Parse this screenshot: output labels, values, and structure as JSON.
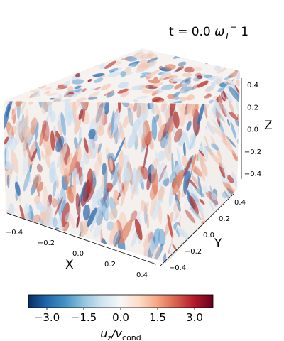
{
  "title": {
    "prefix": "t = 0.0 ",
    "omega": "ω",
    "sub": "T",
    "sup": "−",
    "suffix": " 1"
  },
  "axes": {
    "x": {
      "label": "X",
      "ticks": [
        "−0.4",
        "−0.2",
        "0.0",
        "0.2",
        "0.4"
      ]
    },
    "y": {
      "label": "Y",
      "ticks": [
        "−0.4",
        "−0.2",
        "0.0",
        "0.2",
        "0.4"
      ]
    },
    "z": {
      "label": "Z",
      "ticks": [
        "0.4",
        "0.2",
        "0.0",
        "−0.2",
        "−0.4"
      ]
    }
  },
  "colorbar": {
    "colormap": "RdBu_r",
    "min": -3.75,
    "max": 3.75,
    "ticks": [
      "−3.0",
      "−1.5",
      "0.0",
      "1.5",
      "3.0"
    ],
    "label_u": "u",
    "label_sub1": "z",
    "label_mid": "/v",
    "label_sub2": "cond",
    "colors": [
      "#053061",
      "#2166ac",
      "#4393c3",
      "#92c5de",
      "#d1e5f0",
      "#f7f7f7",
      "#fddbc7",
      "#f4a582",
      "#d6604d",
      "#b2182b",
      "#67001f"
    ]
  },
  "field_colors": {
    "blue_dark": "#2b6cb0",
    "blue_mid": "#6aa6d6",
    "blue_light": "#c9def0",
    "white": "#f6f2ef",
    "red_light": "#f2c6b2",
    "red_mid": "#e08466",
    "red_dark": "#b8362e",
    "red_deep": "#8a1426"
  }
}
